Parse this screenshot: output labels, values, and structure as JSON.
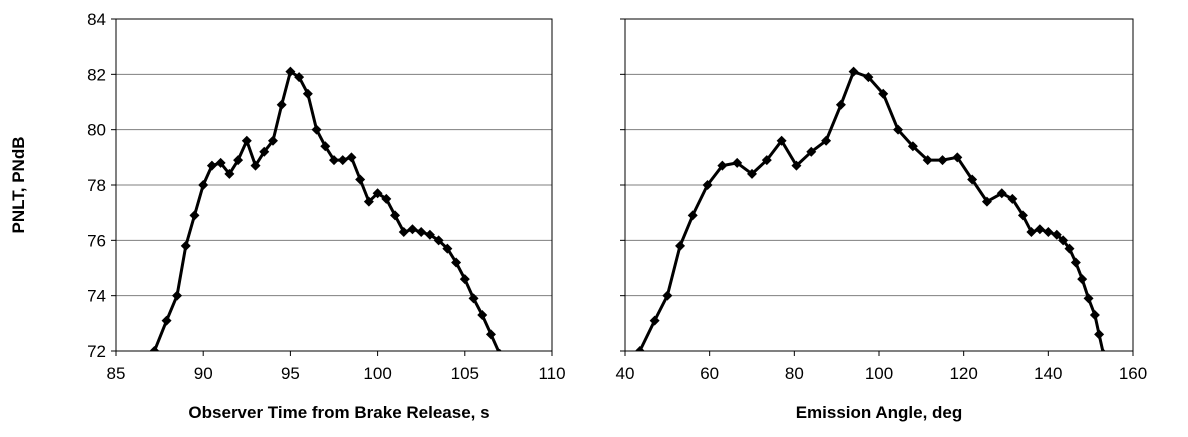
{
  "chart_data": [
    {
      "type": "line",
      "xlabel": "Observer Time from Brake Release,  s",
      "ylabel": "PNLT, PNdB",
      "xlim": [
        85,
        110
      ],
      "ylim": [
        72,
        84
      ],
      "xticks": [
        "85",
        "90",
        "95",
        "100",
        "105",
        "110"
      ],
      "yticks": [
        "72",
        "74",
        "76",
        "78",
        "80",
        "82",
        "84"
      ],
      "grid": "horizontal",
      "marker": "diamond",
      "series": [
        {
          "x": [
            87.2,
            87.9,
            88.5,
            89.0,
            89.5,
            90.0,
            90.5,
            91.0,
            91.5,
            92.0,
            92.5,
            93.0,
            93.5,
            94.0,
            94.5,
            95.0,
            95.5,
            96.0,
            96.5,
            97.0,
            97.5,
            98.0,
            98.5,
            99.0,
            99.5,
            100.0,
            100.5,
            101.0,
            101.5,
            102.0,
            102.5,
            103.0,
            103.5,
            104.0,
            104.5,
            105.0,
            105.5,
            106.0,
            106.5,
            107.0
          ],
          "y": [
            72.0,
            73.1,
            74.0,
            75.8,
            76.9,
            78.0,
            78.7,
            78.8,
            78.4,
            78.9,
            79.6,
            78.7,
            79.2,
            79.6,
            80.9,
            82.1,
            81.9,
            81.3,
            80.0,
            79.4,
            78.9,
            78.9,
            79.0,
            78.2,
            77.4,
            77.7,
            77.5,
            76.9,
            76.3,
            76.4,
            76.3,
            76.2,
            76.0,
            75.7,
            75.2,
            74.6,
            73.9,
            73.3,
            72.6,
            71.9
          ]
        }
      ]
    },
    {
      "type": "line",
      "xlabel": "Emission Angle, deg",
      "ylabel": "",
      "xlim": [
        40,
        160
      ],
      "ylim": [
        72,
        84
      ],
      "xticks": [
        "40",
        "60",
        "80",
        "100",
        "120",
        "140",
        "160"
      ],
      "yticks": [],
      "grid": "horizontal",
      "marker": "diamond",
      "series": [
        {
          "x": [
            43.5,
            47.0,
            50.0,
            53.0,
            56.0,
            59.5,
            63.0,
            66.5,
            70.0,
            73.5,
            77.0,
            80.5,
            84.0,
            87.5,
            91.0,
            94.0,
            97.5,
            101.0,
            104.5,
            108.0,
            111.5,
            115.0,
            118.5,
            122.0,
            125.5,
            129.0,
            131.5,
            134.0,
            136.0,
            138.0,
            140.0,
            142.0,
            143.5,
            145.0,
            146.5,
            148.0,
            149.5,
            151.0,
            152.0,
            153.0
          ],
          "y": [
            72.0,
            73.1,
            74.0,
            75.8,
            76.9,
            78.0,
            78.7,
            78.8,
            78.4,
            78.9,
            79.6,
            78.7,
            79.2,
            79.6,
            80.9,
            82.1,
            81.9,
            81.3,
            80.0,
            79.4,
            78.9,
            78.9,
            79.0,
            78.2,
            77.4,
            77.7,
            77.5,
            76.9,
            76.3,
            76.4,
            76.3,
            76.2,
            76.0,
            75.7,
            75.2,
            74.6,
            73.9,
            73.3,
            72.6,
            71.9
          ]
        }
      ]
    }
  ]
}
